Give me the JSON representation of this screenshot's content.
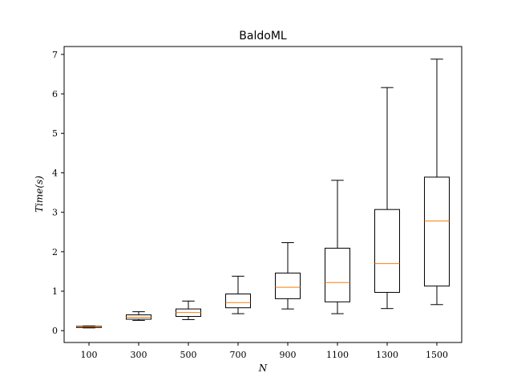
{
  "chart_data": {
    "type": "boxplot",
    "title": "BaldoML",
    "xlabel": "N",
    "ylabel": "Time(s)",
    "categories": [
      "100",
      "300",
      "500",
      "700",
      "900",
      "1100",
      "1300",
      "1500"
    ],
    "ylim": [
      -0.3,
      7.2
    ],
    "yticks": [
      0,
      1,
      2,
      3,
      4,
      5,
      6,
      7
    ],
    "grid": false,
    "boxes": [
      {
        "category": "100",
        "whisker_low": 0.07,
        "q1": 0.08,
        "median": 0.1,
        "q3": 0.11,
        "whisker_high": 0.12
      },
      {
        "category": "300",
        "whisker_low": 0.26,
        "q1": 0.29,
        "median": 0.34,
        "q3": 0.4,
        "whisker_high": 0.48
      },
      {
        "category": "500",
        "whisker_low": 0.28,
        "q1": 0.36,
        "median": 0.46,
        "q3": 0.55,
        "whisker_high": 0.75
      },
      {
        "category": "700",
        "whisker_low": 0.43,
        "q1": 0.58,
        "median": 0.71,
        "q3": 0.93,
        "whisker_high": 1.38
      },
      {
        "category": "900",
        "whisker_low": 0.55,
        "q1": 0.81,
        "median": 1.1,
        "q3": 1.46,
        "whisker_high": 2.23
      },
      {
        "category": "1100",
        "whisker_low": 0.43,
        "q1": 0.73,
        "median": 1.22,
        "q3": 2.09,
        "whisker_high": 3.81
      },
      {
        "category": "1300",
        "whisker_low": 0.56,
        "q1": 0.97,
        "median": 1.7,
        "q3": 3.07,
        "whisker_high": 6.16
      },
      {
        "category": "1500",
        "whisker_low": 0.66,
        "q1": 1.13,
        "median": 2.78,
        "q3": 3.89,
        "whisker_high": 6.88
      }
    ],
    "colors": {
      "box": "#000000",
      "median": "#ff7f0e",
      "axes": "#000000"
    }
  }
}
